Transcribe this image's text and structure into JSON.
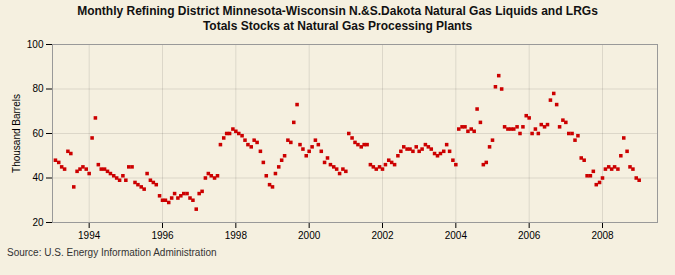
{
  "chart_data": {
    "type": "scatter",
    "title": "Monthly Refining District Minnesota-Wisconsin N.&S.Dakota Natural Gas Liquids and LRGs\nTotals Stocks at Natural Gas Processing Plants",
    "ylabel": "Thousand Barrels",
    "caption": "Source: U.S. Energy Information Administration",
    "color": "#cc0000",
    "marker": "square",
    "grid": true,
    "xlim": [
      1993.0,
      2009.5
    ],
    "xticks": [
      1994,
      1996,
      1998,
      2000,
      2002,
      2004,
      2006,
      2008
    ],
    "ylim": [
      20,
      100
    ],
    "yticks": [
      20,
      40,
      60,
      80,
      100
    ],
    "x": [
      1993.08,
      1993.17,
      1993.25,
      1993.33,
      1993.42,
      1993.5,
      1993.58,
      1993.67,
      1993.75,
      1993.83,
      1993.92,
      1994.0,
      1994.08,
      1994.17,
      1994.25,
      1994.33,
      1994.42,
      1994.5,
      1994.58,
      1994.67,
      1994.75,
      1994.83,
      1994.92,
      1995.0,
      1995.08,
      1995.17,
      1995.25,
      1995.33,
      1995.42,
      1995.5,
      1995.58,
      1995.67,
      1995.75,
      1995.83,
      1995.92,
      1996.0,
      1996.08,
      1996.17,
      1996.25,
      1996.33,
      1996.42,
      1996.5,
      1996.58,
      1996.67,
      1996.75,
      1996.83,
      1996.92,
      1997.0,
      1997.08,
      1997.17,
      1997.25,
      1997.33,
      1997.42,
      1997.5,
      1997.58,
      1997.67,
      1997.75,
      1997.83,
      1997.92,
      1998.0,
      1998.08,
      1998.17,
      1998.25,
      1998.33,
      1998.42,
      1998.5,
      1998.58,
      1998.67,
      1998.75,
      1998.83,
      1998.92,
      1999.0,
      1999.08,
      1999.17,
      1999.25,
      1999.33,
      1999.42,
      1999.5,
      1999.58,
      1999.67,
      1999.75,
      1999.83,
      1999.92,
      2000.0,
      2000.08,
      2000.17,
      2000.25,
      2000.33,
      2000.42,
      2000.5,
      2000.58,
      2000.67,
      2000.75,
      2000.83,
      2000.92,
      2001.0,
      2001.08,
      2001.17,
      2001.25,
      2001.33,
      2001.42,
      2001.5,
      2001.58,
      2001.67,
      2001.75,
      2001.83,
      2001.92,
      2002.0,
      2002.08,
      2002.17,
      2002.25,
      2002.33,
      2002.42,
      2002.5,
      2002.58,
      2002.67,
      2002.75,
      2002.83,
      2002.92,
      2003.0,
      2003.08,
      2003.17,
      2003.25,
      2003.33,
      2003.42,
      2003.5,
      2003.58,
      2003.67,
      2003.75,
      2003.83,
      2003.92,
      2004.0,
      2004.08,
      2004.17,
      2004.25,
      2004.33,
      2004.42,
      2004.5,
      2004.58,
      2004.67,
      2004.75,
      2004.83,
      2004.92,
      2005.0,
      2005.08,
      2005.17,
      2005.25,
      2005.33,
      2005.42,
      2005.5,
      2005.58,
      2005.67,
      2005.75,
      2005.83,
      2005.92,
      2006.0,
      2006.08,
      2006.17,
      2006.25,
      2006.33,
      2006.42,
      2006.5,
      2006.58,
      2006.67,
      2006.75,
      2006.83,
      2006.92,
      2007.0,
      2007.08,
      2007.17,
      2007.25,
      2007.33,
      2007.42,
      2007.5,
      2007.58,
      2007.67,
      2007.75,
      2007.83,
      2007.92,
      2008.0,
      2008.08,
      2008.17,
      2008.25,
      2008.33,
      2008.42,
      2008.5,
      2008.58,
      2008.67,
      2008.75,
      2008.83,
      2008.92,
      2009.0
    ],
    "values": [
      48,
      47,
      45,
      44,
      52,
      51,
      36,
      43,
      44,
      45,
      44,
      42,
      58,
      67,
      46,
      44,
      44,
      43,
      42,
      41,
      40,
      39,
      41,
      39,
      45,
      45,
      38,
      37,
      36,
      35,
      42,
      39,
      38,
      37,
      32,
      30,
      30,
      29,
      31,
      33,
      31,
      32,
      33,
      33,
      31,
      30,
      26,
      33,
      34,
      40,
      42,
      41,
      40,
      41,
      55,
      58,
      60,
      60,
      62,
      61,
      60,
      59,
      57,
      55,
      54,
      57,
      56,
      52,
      47,
      41,
      37,
      36,
      42,
      45,
      48,
      50,
      57,
      56,
      65,
      73,
      55,
      53,
      50,
      52,
      54,
      57,
      55,
      52,
      47,
      49,
      46,
      45,
      44,
      42,
      44,
      43,
      60,
      58,
      56,
      55,
      54,
      55,
      55,
      46,
      45,
      44,
      45,
      44,
      46,
      48,
      47,
      46,
      50,
      52,
      54,
      53,
      53,
      52,
      54,
      52,
      53,
      55,
      54,
      53,
      51,
      50,
      51,
      52,
      55,
      52,
      48,
      46,
      62,
      63,
      63,
      61,
      62,
      61,
      71,
      65,
      46,
      47,
      54,
      57,
      81,
      86,
      80,
      63,
      62,
      62,
      62,
      63,
      60,
      63,
      68,
      67,
      60,
      62,
      60,
      64,
      63,
      64,
      75,
      78,
      73,
      63,
      66,
      65,
      60,
      60,
      57,
      59,
      49,
      48,
      41,
      41,
      43,
      37,
      38,
      40,
      44,
      45,
      44,
      45,
      44,
      50,
      58,
      52,
      45,
      44,
      40,
      39
    ]
  }
}
